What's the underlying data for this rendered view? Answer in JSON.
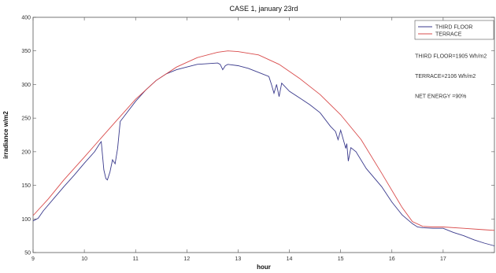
{
  "chart_data": {
    "type": "line",
    "title": "CASE 1, january 23rd",
    "xlabel": "hour",
    "ylabel": "irradiance w/m2",
    "xlim": [
      9,
      18
    ],
    "ylim": [
      50,
      400
    ],
    "xticks": [
      9,
      10,
      11,
      12,
      13,
      14,
      15,
      16,
      17
    ],
    "yticks": [
      50,
      100,
      150,
      200,
      250,
      300,
      350,
      400
    ],
    "grid": false,
    "legend_position": "top-right",
    "series": [
      {
        "name": "THIRD FLOOR",
        "color": "#3a3a8c",
        "x": [
          9.0,
          9.1,
          9.2,
          9.4,
          9.6,
          9.8,
          10.0,
          10.2,
          10.3,
          10.33,
          10.38,
          10.42,
          10.45,
          10.5,
          10.55,
          10.6,
          10.65,
          10.7,
          10.8,
          11.0,
          11.2,
          11.4,
          11.6,
          11.8,
          12.0,
          12.2,
          12.4,
          12.6,
          12.65,
          12.7,
          12.75,
          12.8,
          13.0,
          13.2,
          13.4,
          13.6,
          13.65,
          13.7,
          13.75,
          13.8,
          13.85,
          14.0,
          14.2,
          14.4,
          14.6,
          14.8,
          14.9,
          14.95,
          15.0,
          15.1,
          15.12,
          15.15,
          15.2,
          15.3,
          15.5,
          15.8,
          16.0,
          16.2,
          16.4,
          16.5,
          16.6,
          16.8,
          17.0,
          17.2,
          17.4,
          17.6,
          17.8,
          18.0
        ],
        "y": [
          97,
          101,
          112,
          130,
          148,
          165,
          183,
          200,
          212,
          215,
          173,
          160,
          158,
          170,
          188,
          182,
          205,
          245,
          255,
          275,
          292,
          306,
          316,
          322,
          326,
          330,
          331,
          332,
          330,
          322,
          328,
          330,
          328,
          324,
          318,
          312,
          300,
          287,
          300,
          282,
          302,
          290,
          280,
          270,
          258,
          238,
          230,
          218,
          232,
          205,
          212,
          186,
          206,
          200,
          175,
          148,
          125,
          106,
          93,
          88,
          87,
          86,
          86,
          80,
          75,
          69,
          64,
          60
        ]
      },
      {
        "name": "TERRACE",
        "color": "#d94c4c",
        "x": [
          9.0,
          9.3,
          9.6,
          10.0,
          10.3,
          10.6,
          11.0,
          11.4,
          11.8,
          12.2,
          12.6,
          12.8,
          13.0,
          13.4,
          13.8,
          14.2,
          14.6,
          15.0,
          15.4,
          15.8,
          16.2,
          16.4,
          16.6,
          16.8,
          17.0,
          17.4,
          17.8,
          18.0
        ],
        "y": [
          105,
          130,
          158,
          192,
          218,
          244,
          278,
          306,
          326,
          340,
          348,
          350,
          349,
          344,
          330,
          309,
          285,
          255,
          218,
          168,
          117,
          96,
          89,
          88,
          88,
          86,
          84,
          83
        ]
      }
    ],
    "annotations": [
      "THIRD FLOOR=1905 Wh/m2",
      "TERRACE=2106 Wh/m2",
      "NET ENERGY =90%"
    ]
  }
}
